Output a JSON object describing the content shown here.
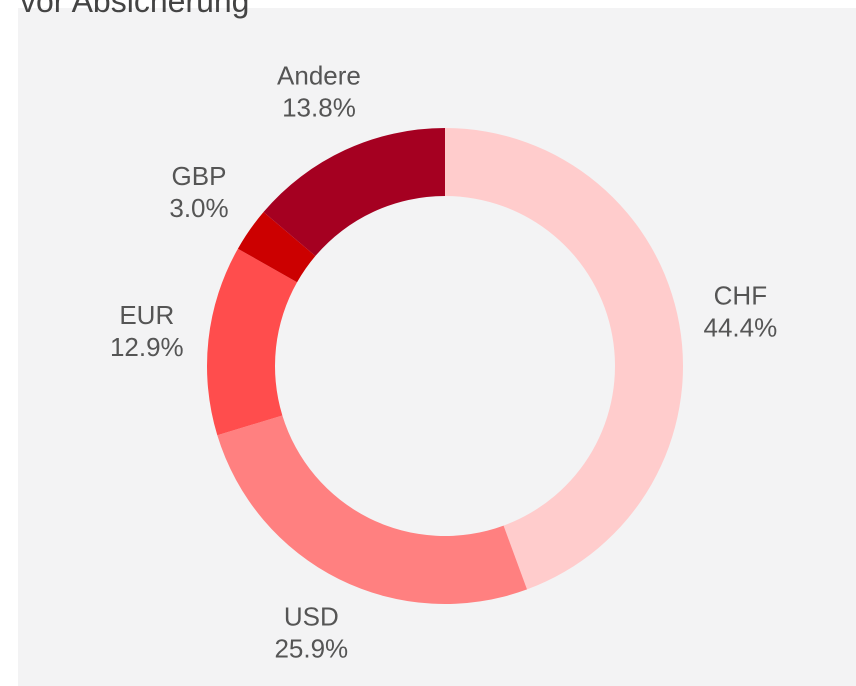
{
  "chart_data": {
    "type": "donut",
    "title": "vor Absicherung",
    "categories": [
      "CHF",
      "USD",
      "EUR",
      "GBP",
      "Andere"
    ],
    "values": [
      44.4,
      25.9,
      12.9,
      3.0,
      13.8
    ],
    "value_labels": [
      "44.4%",
      "25.9%",
      "12.9%",
      "3.0%",
      "13.8%"
    ],
    "colors": [
      "#ffcccc",
      "#ff8080",
      "#ff4d4d",
      "#cc0000",
      "#a50021"
    ]
  }
}
